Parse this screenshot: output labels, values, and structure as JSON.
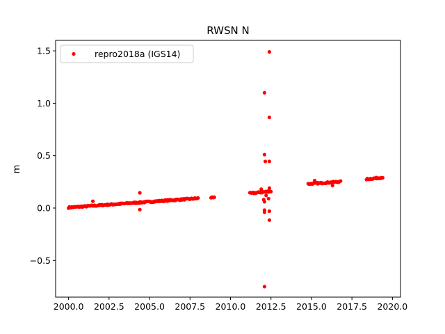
{
  "chart_data": {
    "type": "scatter",
    "title": "RWSN N",
    "xlabel": "",
    "ylabel": "m",
    "xlim": [
      1999.2,
      2020.5
    ],
    "ylim": [
      -0.85,
      1.6
    ],
    "x_ticks": [
      2000.0,
      2002.5,
      2005.0,
      2007.5,
      2010.0,
      2012.5,
      2015.0,
      2017.5,
      2020.0
    ],
    "x_tick_labels": [
      "2000.0",
      "2002.5",
      "2005.0",
      "2007.5",
      "2010.0",
      "2012.5",
      "2015.0",
      "2017.5",
      "2020.0"
    ],
    "y_ticks": [
      -0.5,
      0.0,
      0.5,
      1.0,
      1.5
    ],
    "y_tick_labels": [
      "−0.5",
      "0.0",
      "0.5",
      "1.0",
      "1.5"
    ],
    "grid": false,
    "legend": "top-left",
    "marker_color": "#ff0000",
    "series": [
      {
        "name": "repro2018a (IGS14)",
        "segments": [
          {
            "x_start": 2000.0,
            "x_end": 2008.0,
            "y_start": 0.005,
            "y_end": 0.093
          },
          {
            "x_start": 2008.8,
            "x_end": 2009.0,
            "y_start": 0.1,
            "y_end": 0.105
          },
          {
            "x_start": 2011.2,
            "x_end": 2012.5,
            "y_start": 0.14,
            "y_end": 0.16
          },
          {
            "x_start": 2014.8,
            "x_end": 2016.8,
            "y_start": 0.23,
            "y_end": 0.252
          },
          {
            "x_start": 2018.4,
            "x_end": 2019.4,
            "y_start": 0.275,
            "y_end": 0.292
          }
        ],
        "points": [
          {
            "x": 2001.5,
            "y": 0.065
          },
          {
            "x": 2004.4,
            "y": 0.145
          },
          {
            "x": 2004.4,
            "y": -0.015
          },
          {
            "x": 2012.1,
            "y": 1.1
          },
          {
            "x": 2012.4,
            "y": 1.49
          },
          {
            "x": 2012.4,
            "y": 0.865
          },
          {
            "x": 2012.1,
            "y": 0.51
          },
          {
            "x": 2012.15,
            "y": 0.445
          },
          {
            "x": 2012.4,
            "y": 0.445
          },
          {
            "x": 2012.4,
            "y": 0.19
          },
          {
            "x": 2012.05,
            "y": 0.08
          },
          {
            "x": 2012.1,
            "y": 0.06
          },
          {
            "x": 2012.35,
            "y": 0.09
          },
          {
            "x": 2012.1,
            "y": -0.02
          },
          {
            "x": 2012.1,
            "y": -0.04
          },
          {
            "x": 2012.4,
            "y": -0.03
          },
          {
            "x": 2012.4,
            "y": -0.115
          },
          {
            "x": 2012.1,
            "y": -0.75
          },
          {
            "x": 2011.9,
            "y": 0.18
          },
          {
            "x": 2012.2,
            "y": 0.12
          },
          {
            "x": 2016.3,
            "y": 0.215
          },
          {
            "x": 2015.2,
            "y": 0.262
          }
        ]
      }
    ]
  }
}
